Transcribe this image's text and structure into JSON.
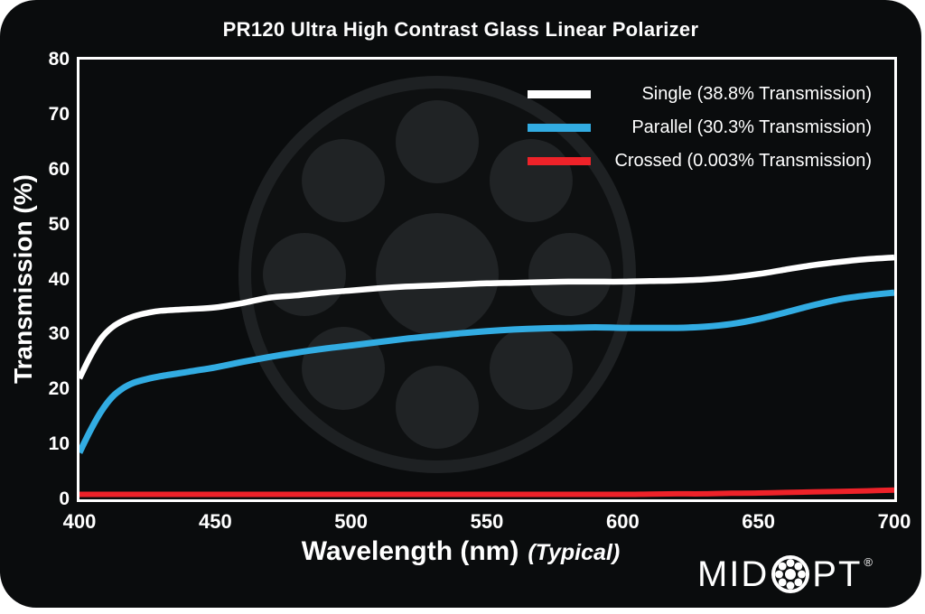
{
  "colors": {
    "page_background": "#ffffff",
    "card_background": "#0a0c0d",
    "axis": "#ffffff",
    "text": "#ffffff",
    "watermark_inner": "#0e1011",
    "watermark_ring": "#1e2123",
    "watermark_circles": "#202325",
    "single": "#ffffff",
    "parallel": "#32ace2",
    "crossed": "#ee2229"
  },
  "chart_data": {
    "type": "line",
    "title": "PR120 Ultra High Contrast Glass Linear Polarizer",
    "xlabel": "Wavelength (nm)",
    "xlabel_suffix": "(Typical)",
    "ylabel": "Transmission (%)",
    "xlim": [
      400,
      700
    ],
    "ylim": [
      0,
      80
    ],
    "xticks": [
      400,
      450,
      500,
      550,
      600,
      650,
      700
    ],
    "yticks": [
      0,
      10,
      20,
      30,
      40,
      50,
      60,
      70,
      80
    ],
    "grid": false,
    "legend_position": "top-right",
    "x": [
      400,
      404,
      408,
      412,
      416,
      420,
      425,
      430,
      440,
      450,
      460,
      470,
      480,
      490,
      500,
      510,
      520,
      530,
      540,
      550,
      560,
      570,
      580,
      590,
      600,
      610,
      620,
      630,
      640,
      650,
      660,
      670,
      680,
      690,
      700
    ],
    "series": [
      {
        "name": "Single (38.8% Transmission)",
        "color": "#ffffff",
        "stroke_width": 6.5,
        "values": [
          22.0,
          26.0,
          29.3,
          31.3,
          32.5,
          33.3,
          33.9,
          34.3,
          34.6,
          34.9,
          35.7,
          36.7,
          37.1,
          37.6,
          38.0,
          38.4,
          38.7,
          38.9,
          39.1,
          39.3,
          39.4,
          39.5,
          39.6,
          39.6,
          39.6,
          39.7,
          39.8,
          40.0,
          40.4,
          41.0,
          41.8,
          42.6,
          43.2,
          43.7,
          44.0
        ]
      },
      {
        "name": "Parallel (30.3% Transmission)",
        "color": "#32ace2",
        "stroke_width": 7,
        "values": [
          8.5,
          12.5,
          16.0,
          18.6,
          20.2,
          21.2,
          21.9,
          22.4,
          23.2,
          24.0,
          25.0,
          25.9,
          26.7,
          27.4,
          28.0,
          28.6,
          29.2,
          29.7,
          30.2,
          30.6,
          30.9,
          31.1,
          31.2,
          31.3,
          31.2,
          31.2,
          31.2,
          31.4,
          31.9,
          32.8,
          34.0,
          35.3,
          36.4,
          37.1,
          37.6
        ]
      },
      {
        "name": "Crossed (0.003% Transmission)",
        "color": "#ee2229",
        "stroke_width": 6,
        "values": [
          0.9,
          0.9,
          0.9,
          0.9,
          0.9,
          0.9,
          0.9,
          0.9,
          0.9,
          0.9,
          0.9,
          0.9,
          0.9,
          0.9,
          0.9,
          0.9,
          0.9,
          0.9,
          0.9,
          0.9,
          0.9,
          0.9,
          0.9,
          0.9,
          0.9,
          0.95,
          1.0,
          1.0,
          1.1,
          1.15,
          1.25,
          1.35,
          1.45,
          1.55,
          1.7
        ]
      }
    ]
  },
  "footer": {
    "logo_text_1": "MID",
    "logo_text_2": "PT",
    "registered_mark": "®"
  }
}
